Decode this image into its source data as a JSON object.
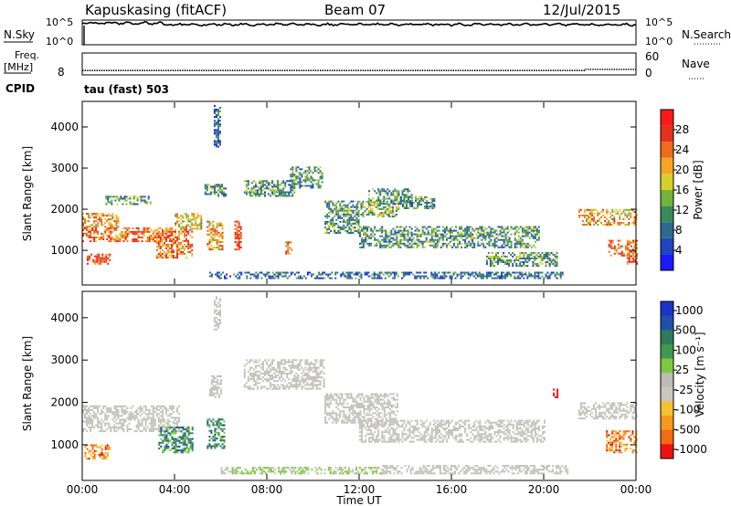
{
  "header": {
    "station": "Kapuskasing (fitACF)",
    "beam": "Beam 07",
    "date": "12/Jul/2015"
  },
  "top_panels": {
    "nsky_label": "N.Sky",
    "nsky_ticks": [
      "10^5",
      "10^0"
    ],
    "nsearch_label": "N.Search",
    "nsearch_ticks": [
      "10^5",
      "10^0"
    ],
    "freq_label": "Freq.",
    "freq_unit": "[MHz]",
    "freq_ticks": [
      "8"
    ],
    "nave_label": "Nave",
    "nave_ticks": [
      "60",
      "0"
    ],
    "cpid_label": "CPID",
    "cpid_text": "tau (fast) 503"
  },
  "colors": {
    "power_scale": [
      "#1a1aff",
      "#1f45c0",
      "#2d6a8f",
      "#3a8a5a",
      "#73b53a",
      "#d8d02a",
      "#f5a623",
      "#ef6b1a",
      "#e4321b",
      "#ff1a1a"
    ],
    "velocity_scale": [
      "#ee1111",
      "#f26b14",
      "#f59a1c",
      "#f7c230",
      "#c8c8c0",
      "#bdbdb5",
      "#7fc940",
      "#3f9a4f",
      "#2f7a5a",
      "#1f4fa8",
      "#1a35c8"
    ],
    "gray": "#c4c4bc"
  },
  "chart_data": [
    {
      "type": "heatmap",
      "name": "Power",
      "ylabel": "Slant Range [km]",
      "xlabel": "",
      "ylim": [
        180,
        4600
      ],
      "y_ticks": [
        1000,
        2000,
        3000,
        4000
      ],
      "y_tick_labels": [
        "1000",
        "2000",
        "3000",
        "4000"
      ],
      "xlim": [
        0,
        24
      ],
      "colorbar_label": "Power [dB]",
      "colorbar_range": [
        0,
        32
      ],
      "colorbar_ticks": [
        4,
        8,
        12,
        16,
        20,
        24,
        28
      ],
      "colorbar_tick_labels": [
        "4",
        "8",
        "12",
        "16",
        "20",
        "24",
        "28"
      ],
      "regions": [
        {
          "t0": 0.0,
          "t1": 1.6,
          "r0": 1550,
          "r1": 1900,
          "v": 18
        },
        {
          "t0": 0.0,
          "t1": 3.9,
          "r0": 1200,
          "r1": 1550,
          "v": 22
        },
        {
          "t0": 0.2,
          "t1": 1.2,
          "r0": 650,
          "r1": 900,
          "v": 25
        },
        {
          "t0": 1.0,
          "t1": 3.0,
          "r0": 2100,
          "r1": 2300,
          "v": 10
        },
        {
          "t0": 3.2,
          "t1": 4.8,
          "r0": 800,
          "r1": 1500,
          "v": 22
        },
        {
          "t0": 4.0,
          "t1": 5.2,
          "r0": 1500,
          "r1": 1900,
          "v": 16
        },
        {
          "t0": 5.3,
          "t1": 6.2,
          "r0": 2300,
          "r1": 2600,
          "v": 9
        },
        {
          "t0": 5.7,
          "t1": 6.0,
          "r0": 3500,
          "r1": 4500,
          "v": 7
        },
        {
          "t0": 5.4,
          "t1": 6.1,
          "r0": 1000,
          "r1": 1700,
          "v": 20
        },
        {
          "t0": 6.6,
          "t1": 6.9,
          "r0": 1000,
          "r1": 1700,
          "v": 25
        },
        {
          "t0": 7.0,
          "t1": 9.2,
          "r0": 2300,
          "r1": 2700,
          "v": 9
        },
        {
          "t0": 8.8,
          "t1": 9.1,
          "r0": 900,
          "r1": 1200,
          "v": 22
        },
        {
          "t0": 9.0,
          "t1": 10.4,
          "r0": 2500,
          "r1": 3000,
          "v": 8
        },
        {
          "t0": 10.5,
          "t1": 12.0,
          "r0": 1400,
          "r1": 2200,
          "v": 10
        },
        {
          "t0": 11.9,
          "t1": 13.7,
          "r0": 1800,
          "r1": 2200,
          "v": 12
        },
        {
          "t0": 12.0,
          "t1": 19.8,
          "r0": 1050,
          "r1": 1550,
          "v": 8
        },
        {
          "t0": 12.4,
          "t1": 14.3,
          "r0": 2100,
          "r1": 2500,
          "v": 9
        },
        {
          "t0": 13.7,
          "t1": 15.3,
          "r0": 2000,
          "r1": 2300,
          "v": 10
        },
        {
          "t0": 5.5,
          "t1": 20.8,
          "r0": 300,
          "r1": 450,
          "v": 7
        },
        {
          "t0": 17.5,
          "t1": 20.6,
          "r0": 600,
          "r1": 950,
          "v": 8
        },
        {
          "t0": 21.5,
          "t1": 24.0,
          "r0": 1600,
          "r1": 2000,
          "v": 18
        },
        {
          "t0": 22.8,
          "t1": 24.0,
          "r0": 850,
          "r1": 1250,
          "v": 22
        },
        {
          "t0": 23.6,
          "t1": 24.0,
          "r0": 650,
          "r1": 900,
          "v": 25
        }
      ]
    },
    {
      "type": "heatmap",
      "name": "Velocity",
      "ylabel": "Slant Range [km]",
      "xlabel": "Time UT",
      "ylim": [
        180,
        4600
      ],
      "y_ticks": [
        1000,
        2000,
        3000,
        4000
      ],
      "y_tick_labels": [
        "1000",
        "2000",
        "3000",
        "4000"
      ],
      "xlim": [
        0,
        24
      ],
      "x_ticks": [
        0,
        4,
        8,
        12,
        16,
        20,
        24
      ],
      "x_tick_labels": [
        "00:00",
        "04:00",
        "08:00",
        "12:00",
        "16:00",
        "20:00",
        "00:00"
      ],
      "colorbar_label": "Velocity [m s⁻¹]",
      "colorbar_tick_labels": [
        "1000",
        "500",
        "100",
        "25",
        "-25",
        "-100",
        "-500",
        "-1000"
      ],
      "regions": [
        {
          "t0": 0.0,
          "t1": 4.2,
          "r0": 1300,
          "r1": 1900,
          "v": "gray"
        },
        {
          "t0": 0.1,
          "t1": 1.2,
          "r0": 650,
          "r1": 1000,
          "v": "orange"
        },
        {
          "t0": 3.3,
          "t1": 4.8,
          "r0": 800,
          "r1": 1400,
          "v": "green"
        },
        {
          "t0": 5.4,
          "t1": 6.2,
          "r0": 900,
          "r1": 1600,
          "v": "green"
        },
        {
          "t0": 5.5,
          "t1": 6.0,
          "r0": 2100,
          "r1": 2600,
          "v": "gray"
        },
        {
          "t0": 5.7,
          "t1": 6.0,
          "r0": 3700,
          "r1": 4500,
          "v": "gray"
        },
        {
          "t0": 7.0,
          "t1": 10.5,
          "r0": 2300,
          "r1": 3000,
          "v": "gray"
        },
        {
          "t0": 10.5,
          "t1": 13.7,
          "r0": 1500,
          "r1": 2200,
          "v": "gray"
        },
        {
          "t0": 12.0,
          "t1": 20.0,
          "r0": 1050,
          "r1": 1550,
          "v": "gray"
        },
        {
          "t0": 6.0,
          "t1": 13.0,
          "r0": 300,
          "r1": 450,
          "v": "lightgreen"
        },
        {
          "t0": 13.0,
          "t1": 21.0,
          "r0": 300,
          "r1": 500,
          "v": "gray"
        },
        {
          "t0": 20.4,
          "t1": 20.6,
          "r0": 2100,
          "r1": 2300,
          "v": "red"
        },
        {
          "t0": 21.5,
          "t1": 24.0,
          "r0": 1600,
          "r1": 2000,
          "v": "gray"
        },
        {
          "t0": 22.7,
          "t1": 24.0,
          "r0": 800,
          "r1": 1300,
          "v": "orange"
        }
      ]
    },
    {
      "type": "line",
      "name": "N.Sky",
      "values_level": 0.82
    },
    {
      "type": "line",
      "name": "Nave",
      "values": [
        {
          "t0": 0.0,
          "t1": 21.8,
          "v": 10
        },
        {
          "t0": 21.8,
          "t1": 24.0,
          "v": 13
        }
      ]
    }
  ]
}
